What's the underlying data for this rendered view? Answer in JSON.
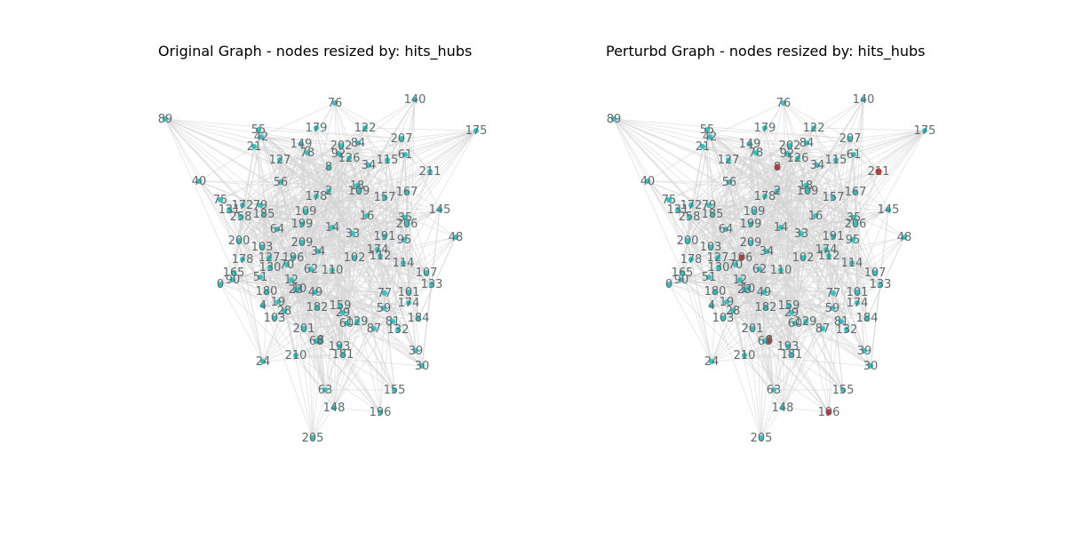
{
  "panels": [
    {
      "id": "original",
      "title": "Original Graph - nodes resized by: hits_hubs",
      "highlight_color": "",
      "highlighted_nodes": []
    },
    {
      "id": "perturbed",
      "title": "Perturbd Graph - nodes resized by: hits_hubs",
      "highlight_color": "#d62728",
      "highlighted_nodes": [
        "211",
        "65",
        "8",
        "196"
      ]
    }
  ],
  "colors": {
    "edge": "#d3d3d3",
    "node": "#2ec4c4",
    "label": "#5f6b6b"
  },
  "nodes": [
    "89",
    "55",
    "42",
    "21",
    "179",
    "76",
    "140",
    "122",
    "207",
    "175",
    "149",
    "78",
    "202",
    "92",
    "84",
    "61",
    "115",
    "126",
    "34",
    "8",
    "211",
    "40",
    "75",
    "131",
    "172",
    "79",
    "127",
    "56",
    "178",
    "2",
    "18",
    "109",
    "157",
    "167",
    "145",
    "258",
    "185",
    "109",
    "64",
    "199",
    "14",
    "33",
    "16",
    "206",
    "35",
    "48",
    "200",
    "103",
    "209",
    "34",
    "191",
    "95",
    "174",
    "178",
    "127",
    "196",
    "102",
    "112",
    "165",
    "130",
    "70",
    "62",
    "110",
    "114",
    "107",
    "0",
    "90",
    "51",
    "12",
    "133",
    "180",
    "10",
    "49",
    "101",
    "4",
    "19",
    "23",
    "28",
    "182",
    "159",
    "77",
    "174",
    "103",
    "201",
    "29",
    "60",
    "129",
    "59",
    "184",
    "8",
    "68",
    "193",
    "87",
    "81",
    "132",
    "24",
    "210",
    "181",
    "39",
    "30",
    "63",
    "155",
    "148",
    "196",
    "205"
  ]
}
